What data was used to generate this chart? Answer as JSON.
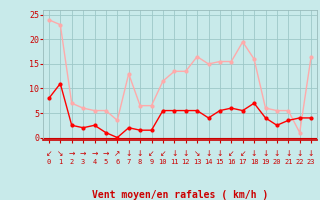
{
  "x": [
    0,
    1,
    2,
    3,
    4,
    5,
    6,
    7,
    8,
    9,
    10,
    11,
    12,
    13,
    14,
    15,
    16,
    17,
    18,
    19,
    20,
    21,
    22,
    23
  ],
  "wind_avg": [
    8,
    11,
    2.5,
    2,
    2.5,
    1,
    0,
    2,
    1.5,
    1.5,
    5.5,
    5.5,
    5.5,
    5.5,
    4,
    5.5,
    6,
    5.5,
    7,
    4,
    2.5,
    3.5,
    4,
    4
  ],
  "wind_gust": [
    24,
    23,
    7,
    6,
    5.5,
    5.5,
    3.5,
    13,
    6.5,
    6.5,
    11.5,
    13.5,
    13.5,
    16.5,
    15,
    15.5,
    15.5,
    19.5,
    16,
    6,
    5.5,
    5.5,
    1,
    16.5
  ],
  "arrows": [
    "↙",
    "↘",
    "→",
    "→",
    "→",
    "→",
    "↗",
    "↓",
    "↓",
    "↙",
    "↙",
    "↓",
    "↓",
    "↘",
    "↓",
    "↓",
    "↙",
    "↙↘",
    "↓",
    "↓",
    "↓",
    "↓",
    "↓",
    "↓"
  ],
  "color_avg": "#ff0000",
  "color_gust": "#ffaaaa",
  "bg_color": "#c8eaea",
  "grid_color": "#9ec8c8",
  "xlabel": "Vent moyen/en rafales ( km/h )",
  "xlabel_color": "#cc0000",
  "yticks": [
    0,
    5,
    10,
    15,
    20,
    25
  ],
  "xticks": [
    0,
    1,
    2,
    3,
    4,
    5,
    6,
    7,
    8,
    9,
    10,
    11,
    12,
    13,
    14,
    15,
    16,
    17,
    18,
    19,
    20,
    21,
    22,
    23
  ],
  "ylim": [
    -0.5,
    26
  ],
  "xlim": [
    -0.5,
    23.5
  ]
}
